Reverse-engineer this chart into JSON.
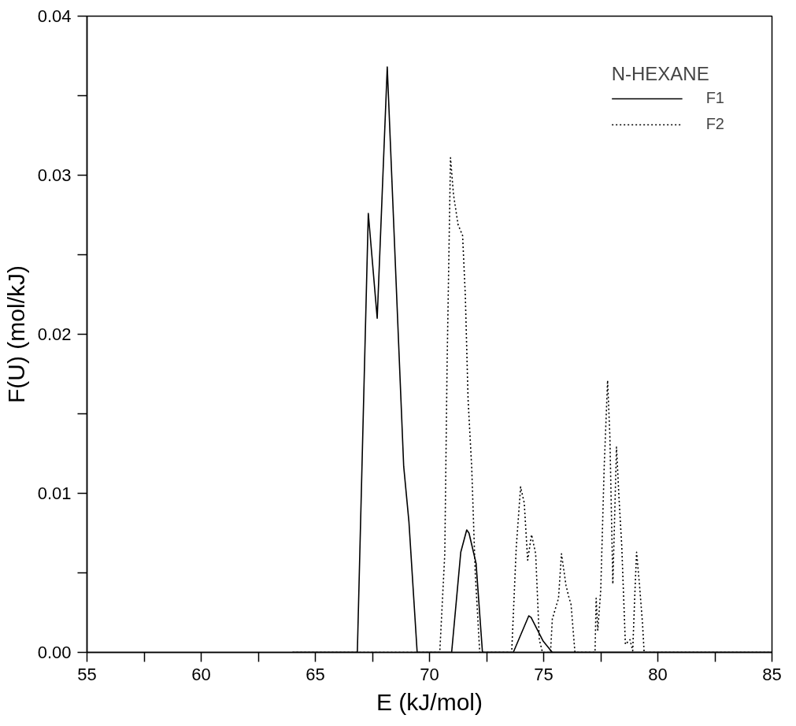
{
  "chart_data": {
    "type": "line",
    "xlabel": "E (kJ/mol)",
    "ylabel": "F(U) (mol/kJ)",
    "legend_title": "N-HEXANE",
    "legend": "top right",
    "grid": false,
    "marker": "none",
    "xlim": [
      55,
      85
    ],
    "ylim": [
      0,
      0.04
    ],
    "xticks": [
      55,
      {
        "value": 57.5,
        "label": null
      },
      60,
      {
        "value": 62.5,
        "label": null
      },
      65,
      {
        "value": 67.5,
        "label": null
      },
      70,
      {
        "value": 72.5,
        "label": null
      },
      75,
      {
        "value": 77.5,
        "label": null
      },
      80,
      {
        "value": 82.5,
        "label": null
      },
      85
    ],
    "yticks": [
      {
        "value": 0,
        "label": "0.00"
      },
      {
        "value": 0.005,
        "label": null
      },
      0.01,
      {
        "value": 0.015,
        "label": null
      },
      0.02,
      {
        "value": 0.025,
        "label": null
      },
      0.03,
      {
        "value": 0.035,
        "label": null
      },
      0.04
    ],
    "series": [
      {
        "name": "F1",
        "color": "#000000",
        "line_style": "solid",
        "x": [
          64,
          66.84,
          67.32,
          67.71,
          68.15,
          68.87,
          69.1,
          69.46,
          70.97,
          71.37,
          71.63,
          71.73,
          72.04,
          72.32,
          73.67,
          74.35,
          74.45,
          74.98,
          75.38,
          85
        ],
        "values": [
          0,
          0,
          0.0276,
          0.021,
          0.0368,
          0.0117,
          0.0082,
          0,
          0,
          0.0063,
          0.0077,
          0.0075,
          0.0056,
          0,
          0,
          0.0023,
          0.0022,
          0.0007,
          0,
          0
        ]
      },
      {
        "name": "F2",
        "color": "#000000",
        "line_style": "dotted",
        "x": [
          64,
          70.45,
          70.67,
          70.77,
          70.92,
          71.05,
          71.25,
          71.45,
          71.57,
          71.69,
          71.85,
          72.0,
          72.2,
          73.6,
          73.8,
          73.99,
          74.15,
          74.3,
          74.47,
          74.65,
          74.81,
          74.95,
          75.3,
          75.38,
          75.65,
          75.78,
          75.98,
          76.1,
          76.2,
          76.37,
          77.25,
          77.3,
          77.37,
          77.5,
          77.65,
          77.8,
          77.9,
          78.03,
          78.19,
          78.3,
          78.42,
          78.58,
          78.78,
          78.9,
          79.0,
          79.07,
          79.2,
          79.33,
          79.4,
          85
        ],
        "values": [
          0,
          0,
          0.0062,
          0.018,
          0.0311,
          0.0288,
          0.0269,
          0.0262,
          0.0224,
          0.0159,
          0.0116,
          0.0051,
          0,
          0,
          0.0066,
          0.0104,
          0.0094,
          0.0058,
          0.0074,
          0.0062,
          0.0008,
          0,
          0,
          0.0021,
          0.0034,
          0.0062,
          0.0042,
          0.0035,
          0.003,
          0,
          0,
          0.0034,
          0.0014,
          0.0039,
          0.0116,
          0.0171,
          0.0136,
          0.0043,
          0.0129,
          0.0097,
          0.0067,
          0.0005,
          0.0008,
          0.0001,
          0.0039,
          0.0063,
          0.0042,
          0.0018,
          0,
          0
        ]
      }
    ]
  }
}
